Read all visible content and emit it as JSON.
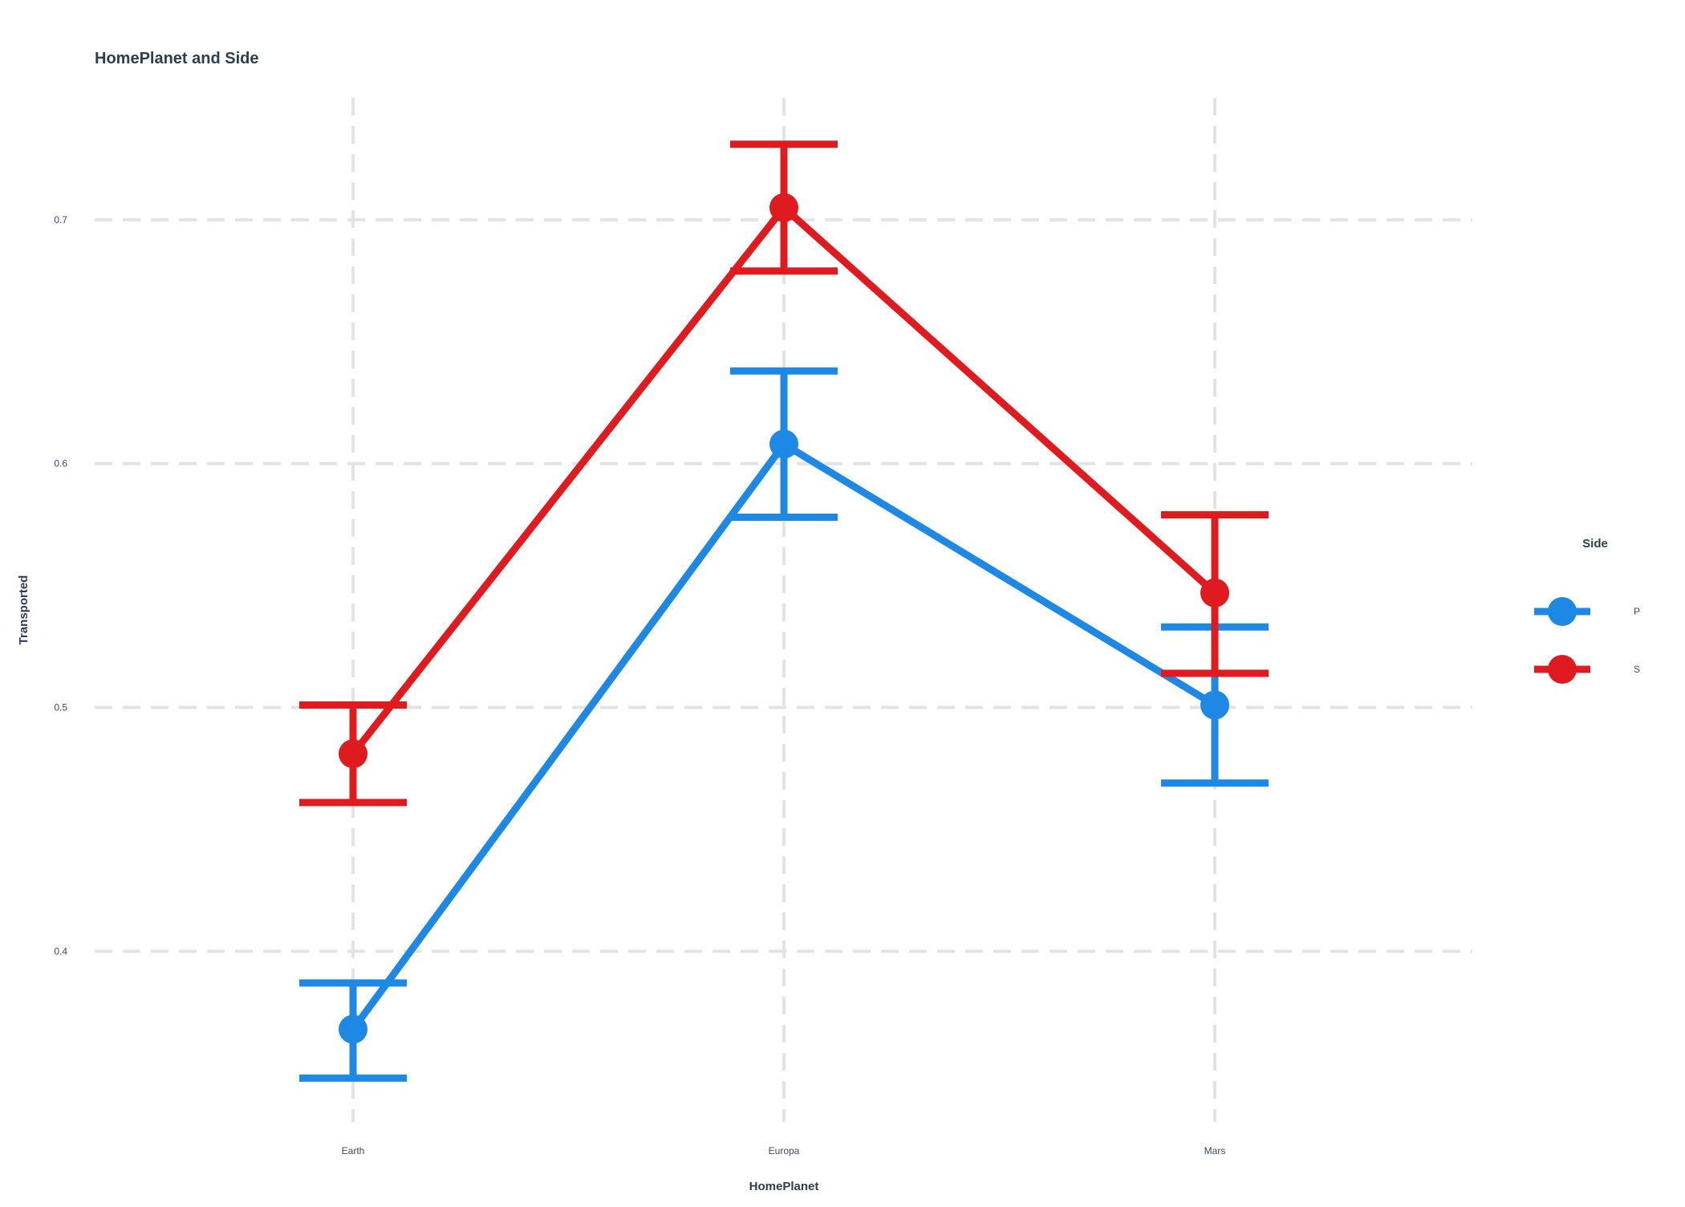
{
  "chart_data": {
    "type": "line",
    "title": "HomePlanet and Side",
    "xlabel": "HomePlanet",
    "ylabel": "Transported",
    "categories": [
      "Earth",
      "Europa",
      "Mars"
    ],
    "ylim": [
      0.33,
      0.75
    ],
    "yticks": [
      0.4,
      0.5,
      0.6,
      0.7
    ],
    "ytick_labels": [
      "0.4",
      "0.5",
      "0.6",
      "0.7"
    ],
    "grid": true,
    "legend": {
      "title": "Side",
      "position": "right"
    },
    "series": [
      {
        "name": "P",
        "color": "#1e88e5",
        "values": [
          0.368,
          0.608,
          0.501
        ],
        "lower": [
          0.348,
          0.578,
          0.469
        ],
        "upper": [
          0.387,
          0.638,
          0.533
        ]
      },
      {
        "name": "S",
        "color": "#e01b1f",
        "values": [
          0.481,
          0.705,
          0.547
        ],
        "lower": [
          0.461,
          0.679,
          0.514
        ],
        "upper": [
          0.501,
          0.731,
          0.579
        ]
      }
    ]
  }
}
